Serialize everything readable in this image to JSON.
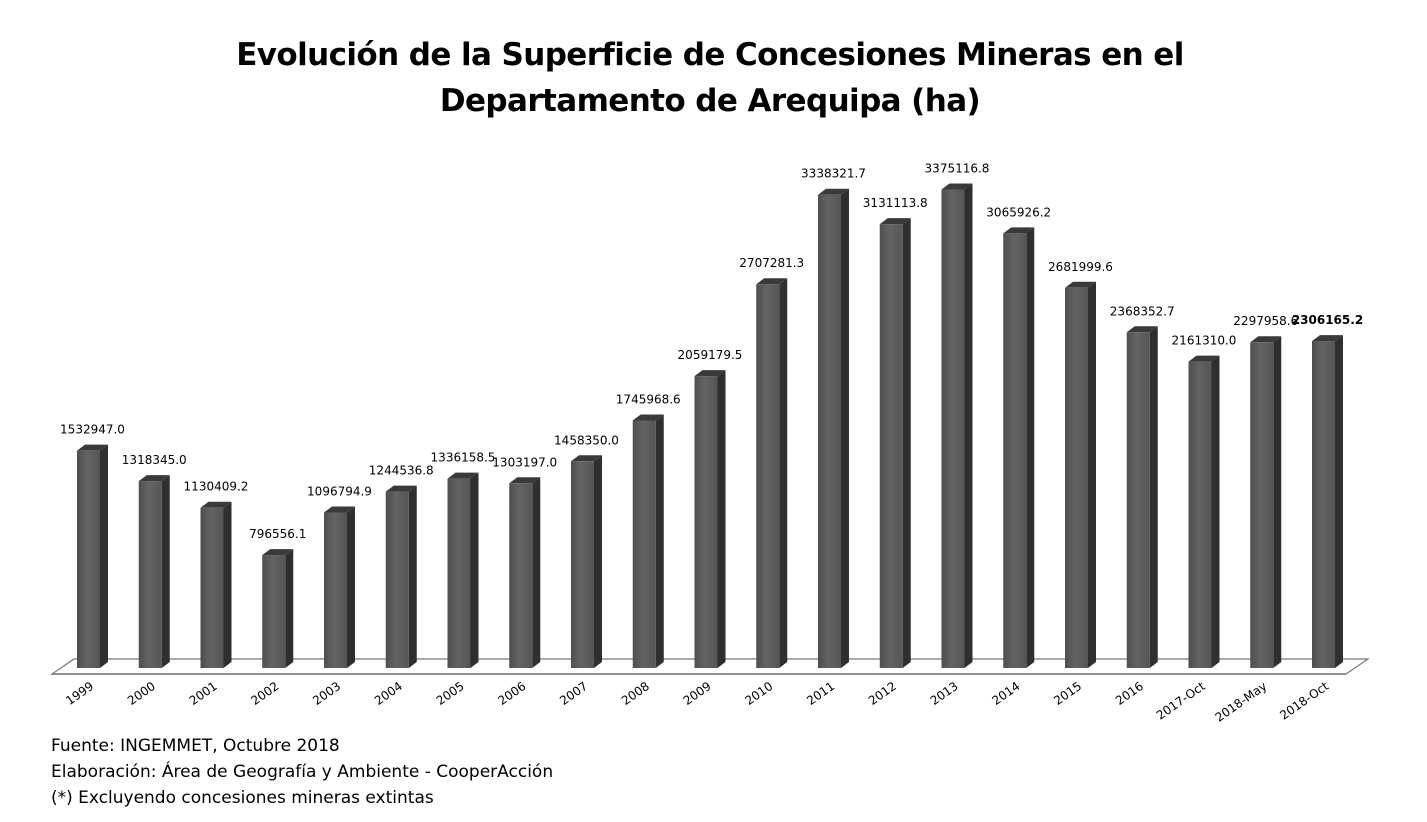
{
  "chart_data": {
    "type": "bar",
    "title_line1": "Evolución de la Superficie de Concesiones Mineras en el",
    "title_line2": "Departamento de Arequipa (ha)",
    "categories": [
      "1999",
      "2000",
      "2001",
      "2002",
      "2003",
      "2004",
      "2005",
      "2006",
      "2007",
      "2008",
      "2009",
      "2010",
      "2011",
      "2012",
      "2013",
      "2014",
      "2015",
      "2016",
      "2017-Oct",
      "2018-May",
      "2018-Oct"
    ],
    "values": [
      1532947.0,
      1318345.0,
      1130409.2,
      796556.1,
      1096794.9,
      1244536.8,
      1336158.5,
      1303197.0,
      1458350.0,
      1745968.6,
      2059179.5,
      2707281.3,
      3338321.7,
      3131113.8,
      3375116.8,
      3065926.2,
      2681999.6,
      2368352.7,
      2161310.0,
      2297958.6,
      2306165.2
    ],
    "value_labels": [
      "1532947.0",
      "1318345.0",
      "1130409.2",
      "796556.1",
      "1096794.9",
      "1244536.8",
      "1336158.5",
      "1303197.0",
      "1458350.0",
      "1745968.6",
      "2059179.5",
      "2707281.3",
      "3338321.7",
      "3131113.8",
      "3375116.8",
      "3065926.2",
      "2681999.6",
      "2368352.7",
      "2161310.0",
      "2297958.6",
      "2306165.2"
    ],
    "bold_label_index": 20,
    "xlabel": "",
    "ylabel": "",
    "ylim": [
      0,
      3400000
    ],
    "grid": false,
    "legend": "none",
    "bar_color": "#5a5a5a"
  },
  "notes": {
    "source": "Fuente: INGEMMET, Octubre 2018",
    "elaboration": "Elaboración: Área de Geografía y Ambiente - CooperAcción",
    "footnote": "(*) Excluyendo concesiones mineras extintas"
  }
}
